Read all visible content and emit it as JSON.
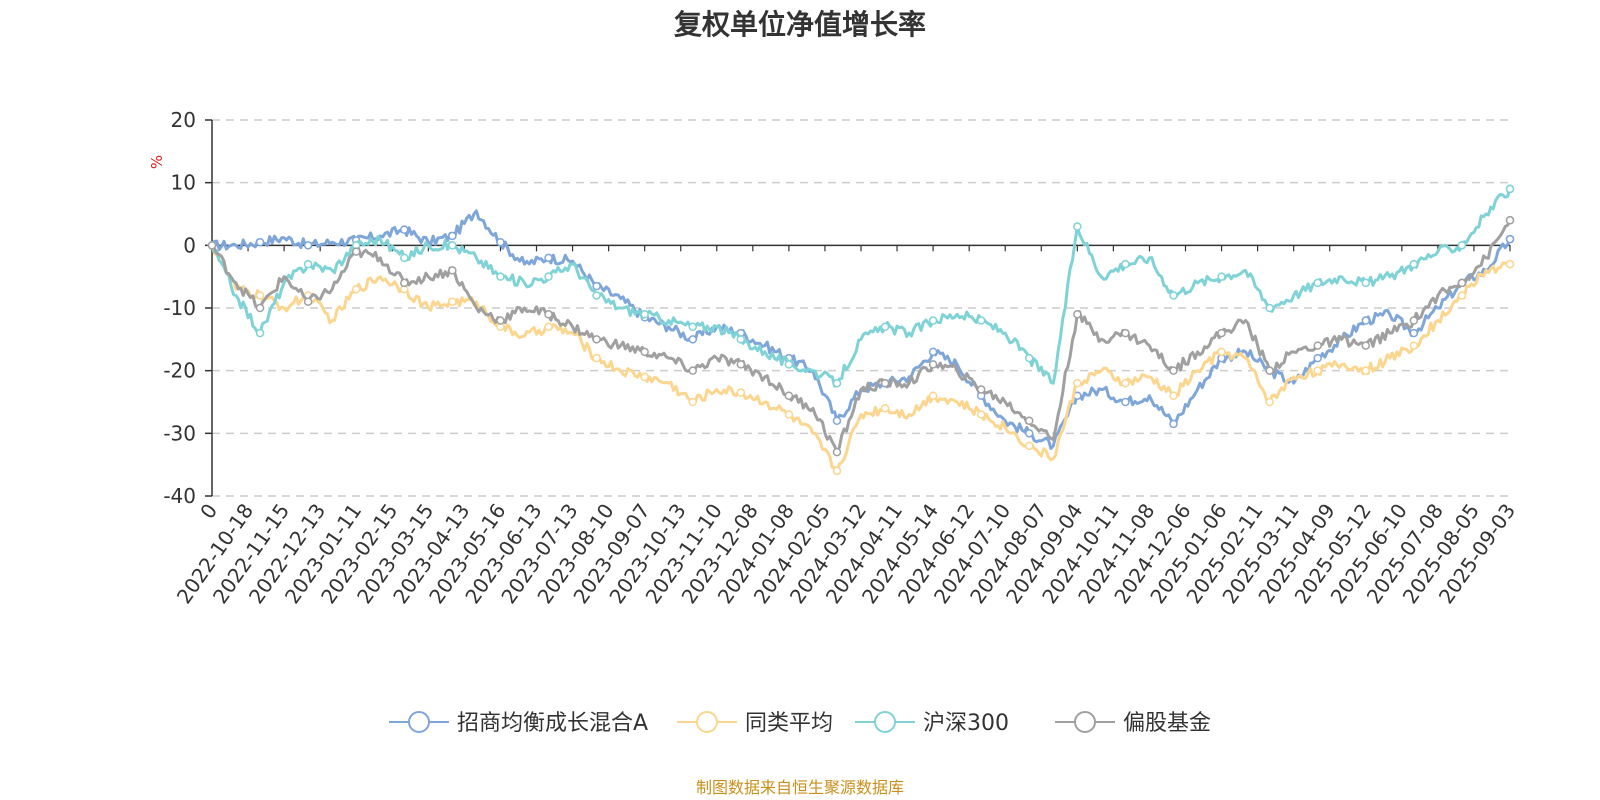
{
  "chart_data": {
    "type": "line",
    "title": "复权单位净值增长率",
    "ylabel": "%",
    "ylim": [
      -40,
      20
    ],
    "y_ticks": [
      "20",
      "10",
      "0",
      "-10",
      "-20",
      "-30",
      "-40"
    ],
    "x_tick_labels": [
      "0",
      "2022-10-18",
      "2022-11-15",
      "2022-12-13",
      "2023-01-11",
      "2023-02-15",
      "2023-03-15",
      "2023-04-13",
      "2023-05-16",
      "2023-06-13",
      "2023-07-13",
      "2023-08-10",
      "2023-09-07",
      "2023-10-13",
      "2023-11-10",
      "2023-12-08",
      "2024-01-08",
      "2024-02-05",
      "2024-03-12",
      "2024-04-11",
      "2024-05-14",
      "2024-06-12",
      "2024-07-10",
      "2024-08-07",
      "2024-09-04",
      "2024-10-11",
      "2024-11-08",
      "2024-12-06",
      "2025-01-06",
      "2025-02-11",
      "2025-03-11",
      "2025-04-09",
      "2025-05-12",
      "2025-06-10",
      "2025-07-08",
      "2025-08-05",
      "2025-09-03"
    ],
    "grid": "horizontal-dashed",
    "legend_position": "bottom",
    "series": [
      {
        "name": "招商均衡成长混合A",
        "color": "#7fa6d9",
        "values": [
          0,
          0,
          0.5,
          1.2,
          0,
          0.5,
          0.8,
          1.5,
          2.5,
          0.5,
          1.5,
          5.5,
          0.5,
          -3,
          -2,
          -2.5,
          -6.5,
          -8.5,
          -11.5,
          -13,
          -15,
          -13,
          -14,
          -16,
          -18,
          -20,
          -28,
          -23,
          -22,
          -21,
          -17,
          -19,
          -24,
          -28,
          -30,
          -32,
          -24,
          -23,
          -25,
          -24,
          -28.5,
          -23,
          -18,
          -17,
          -20,
          -22,
          -18,
          -15,
          -12,
          -11,
          -14,
          -10,
          -6,
          -4,
          1
        ]
      },
      {
        "name": "同类平均",
        "color": "#fcd68e",
        "values": [
          0,
          -7,
          -8,
          -10,
          -8,
          -12,
          -7,
          -5,
          -7,
          -10,
          -9,
          -9,
          -13,
          -14.5,
          -13,
          -14,
          -18,
          -20,
          -21,
          -22,
          -25,
          -23,
          -23.5,
          -25,
          -27,
          -30,
          -36,
          -27,
          -26,
          -27,
          -24,
          -25,
          -27,
          -29,
          -32,
          -34,
          -22,
          -20,
          -22,
          -21,
          -24,
          -20,
          -17,
          -18,
          -25,
          -21,
          -20,
          -19,
          -20,
          -18,
          -16,
          -12,
          -8,
          -4,
          -3
        ]
      },
      {
        "name": "沪深300",
        "color": "#7fd3d6",
        "values": [
          0,
          -8,
          -14,
          -6,
          -3,
          -4,
          0,
          1,
          -2,
          0,
          0,
          -2,
          -5,
          -6,
          -5,
          -3,
          -8,
          -10,
          -11,
          -12,
          -13,
          -13,
          -15,
          -17,
          -19,
          -20,
          -22,
          -15,
          -13,
          -14,
          -12,
          -11,
          -12,
          -14,
          -18,
          -22,
          3,
          -5,
          -3,
          -2,
          -8,
          -6,
          -5,
          -4,
          -10,
          -8,
          -6,
          -5,
          -6,
          -5,
          -3,
          -1,
          0,
          5,
          9
        ]
      },
      {
        "name": "偏股基金",
        "color": "#a0a0a0",
        "values": [
          0,
          -6,
          -10,
          -5,
          -9,
          -7,
          -1,
          -2,
          -6,
          -5,
          -4,
          -10,
          -12,
          -10,
          -11,
          -13,
          -15,
          -16,
          -17,
          -18,
          -20,
          -18,
          -19,
          -21,
          -24,
          -26,
          -33,
          -23,
          -22,
          -22,
          -19,
          -20,
          -23,
          -25,
          -28,
          -31,
          -11,
          -15,
          -14,
          -16,
          -20,
          -17,
          -14,
          -12,
          -20,
          -17,
          -16,
          -15,
          -16,
          -14,
          -12,
          -8,
          -6,
          -2,
          4
        ]
      }
    ]
  },
  "source_note": "制图数据来自恒生聚源数据库",
  "source_color": "#c8901b",
  "unit_color": "#e02020"
}
